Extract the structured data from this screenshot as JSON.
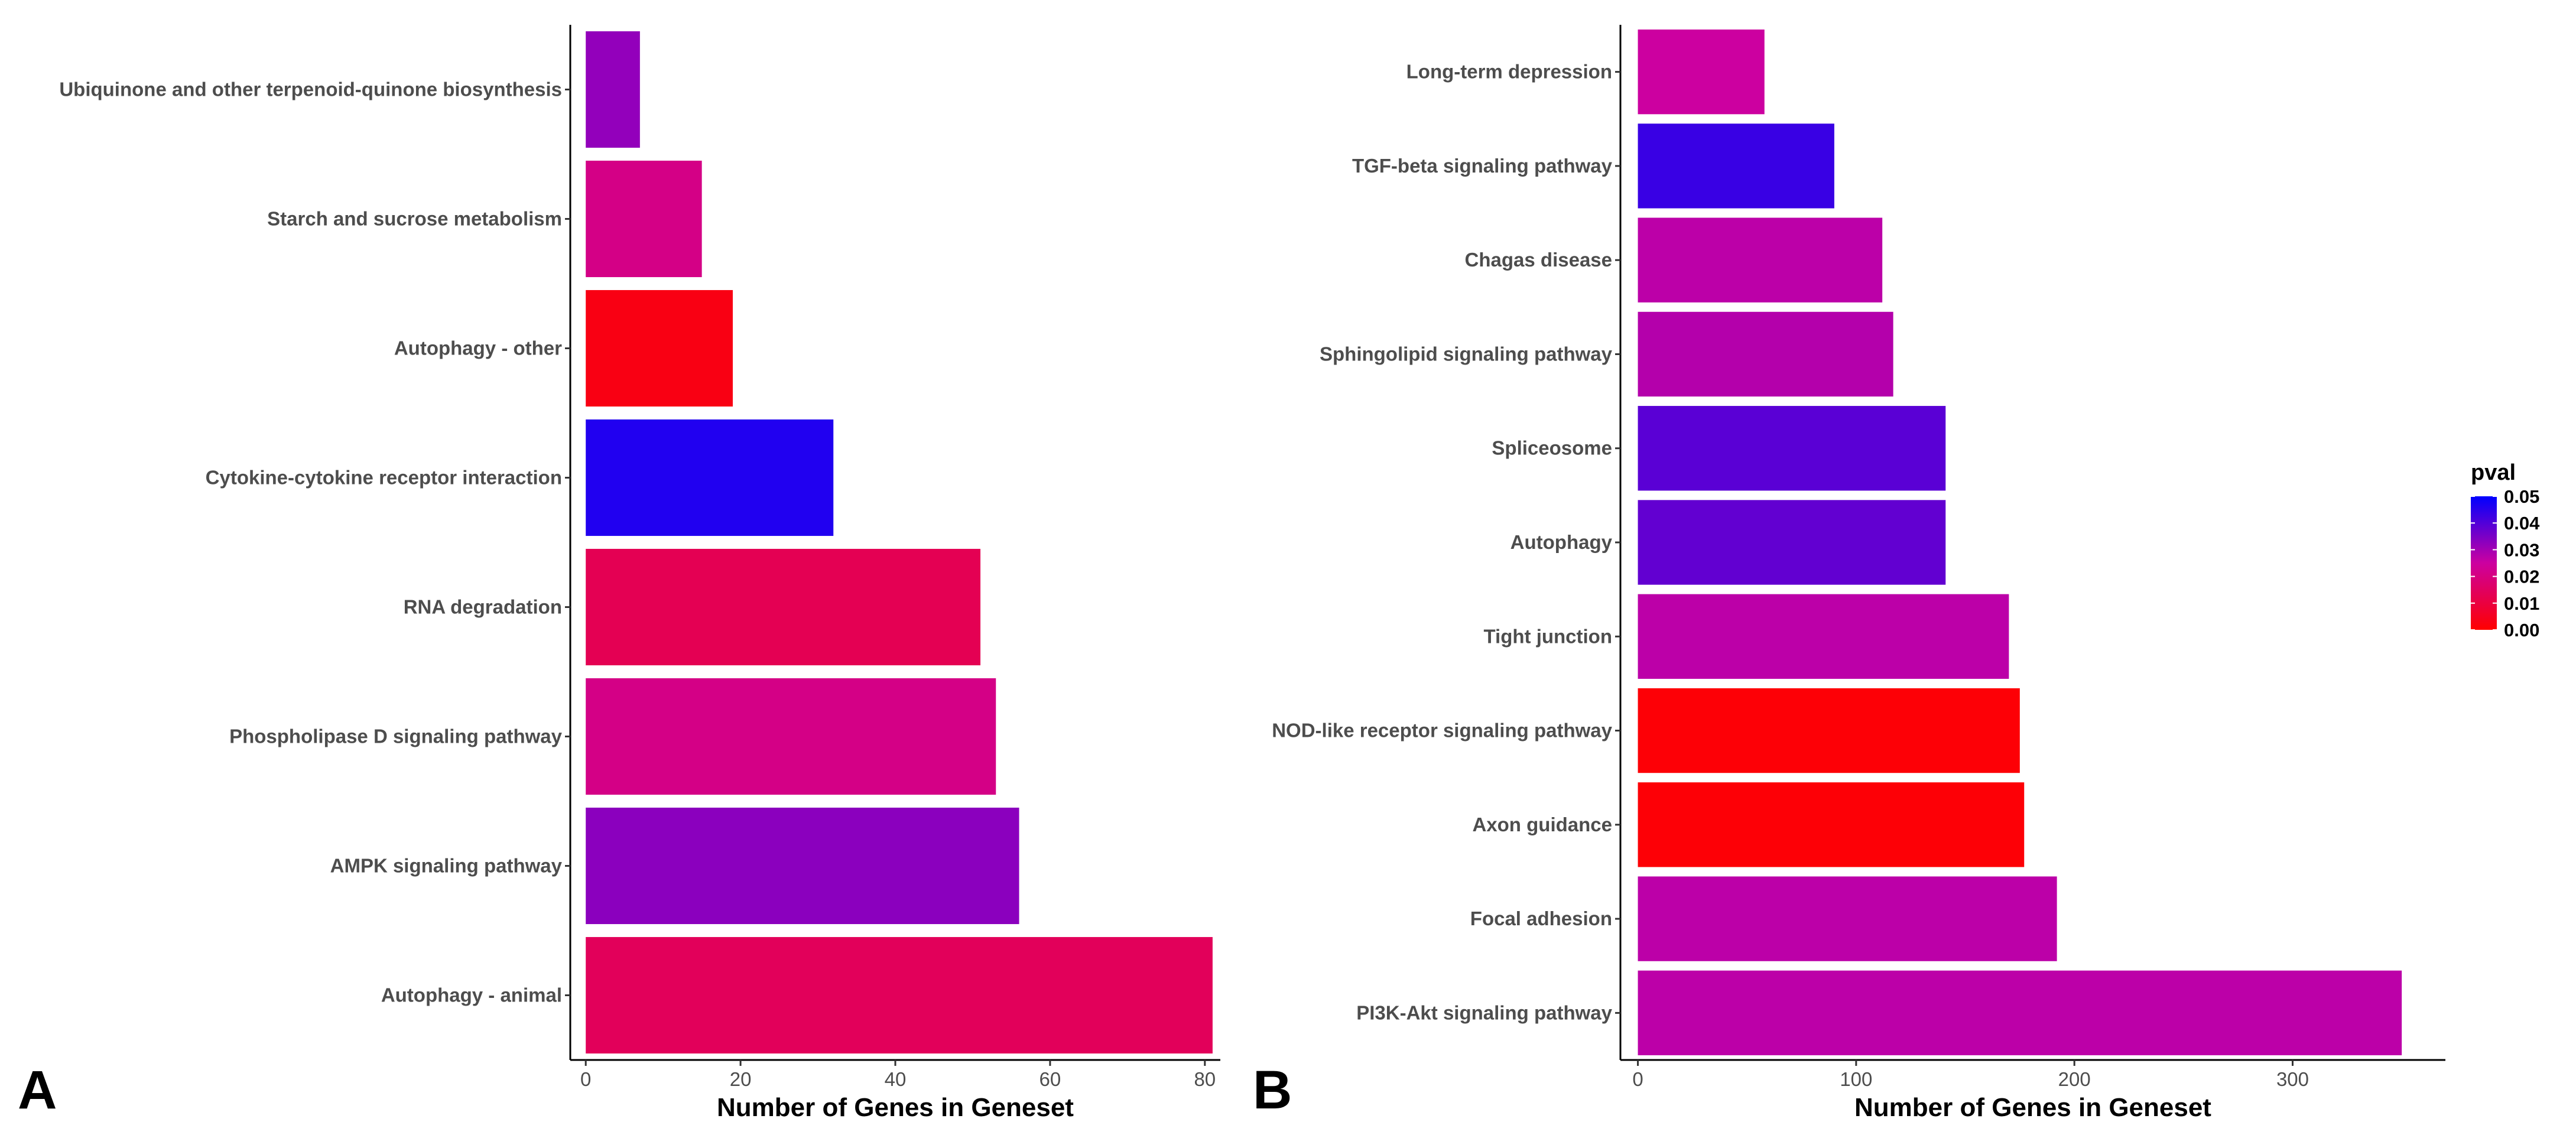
{
  "chart_data": [
    {
      "type": "bar",
      "orientation": "horizontal",
      "panel_label": "A",
      "categories": [
        "Ubiquinone and other terpenoid-quinone biosynthesis",
        "Starch and sucrose metabolism",
        "Autophagy - other",
        "Cytokine-cytokine receptor interaction",
        "RNA degradation",
        "Phospholipase D signaling pathway",
        "AMPK signaling pathway",
        "Autophagy - animal"
      ],
      "values": [
        7,
        15,
        19,
        32,
        51,
        53,
        56,
        81
      ],
      "pval": [
        0.032,
        0.021,
        0.003,
        0.046,
        0.013,
        0.021,
        0.033,
        0.014
      ],
      "xlabel": "Number of Genes in Geneset",
      "xlim": [
        -2,
        82
      ],
      "xticks": [
        0,
        20,
        40,
        60,
        80
      ]
    },
    {
      "type": "bar",
      "orientation": "horizontal",
      "panel_label": "B",
      "categories": [
        "Long-term depression",
        "TGF-beta signaling pathway",
        "Chagas disease",
        "Sphingolipid signaling pathway",
        "Spliceosome",
        "Autophagy",
        "Tight junction",
        "NOD-like receptor signaling pathway",
        "Axon guidance",
        "Focal adhesion",
        "PI3K-Akt signaling pathway"
      ],
      "values": [
        58,
        90,
        112,
        117,
        141,
        141,
        170,
        175,
        177,
        192,
        350
      ],
      "pval": [
        0.025,
        0.043,
        0.027,
        0.028,
        0.039,
        0.038,
        0.027,
        0.001,
        0.001,
        0.027,
        0.027
      ],
      "xlabel": "Number of Genes in Geneset",
      "xlim": [
        -8,
        370
      ],
      "xticks": [
        0,
        100,
        200,
        300
      ]
    }
  ],
  "legend": {
    "title": "pval",
    "ticks": [
      "0.05",
      "0.04",
      "0.03",
      "0.02",
      "0.01",
      "0.00"
    ],
    "colors": {
      "low": "#ff0000",
      "high": "#0000ff"
    }
  }
}
